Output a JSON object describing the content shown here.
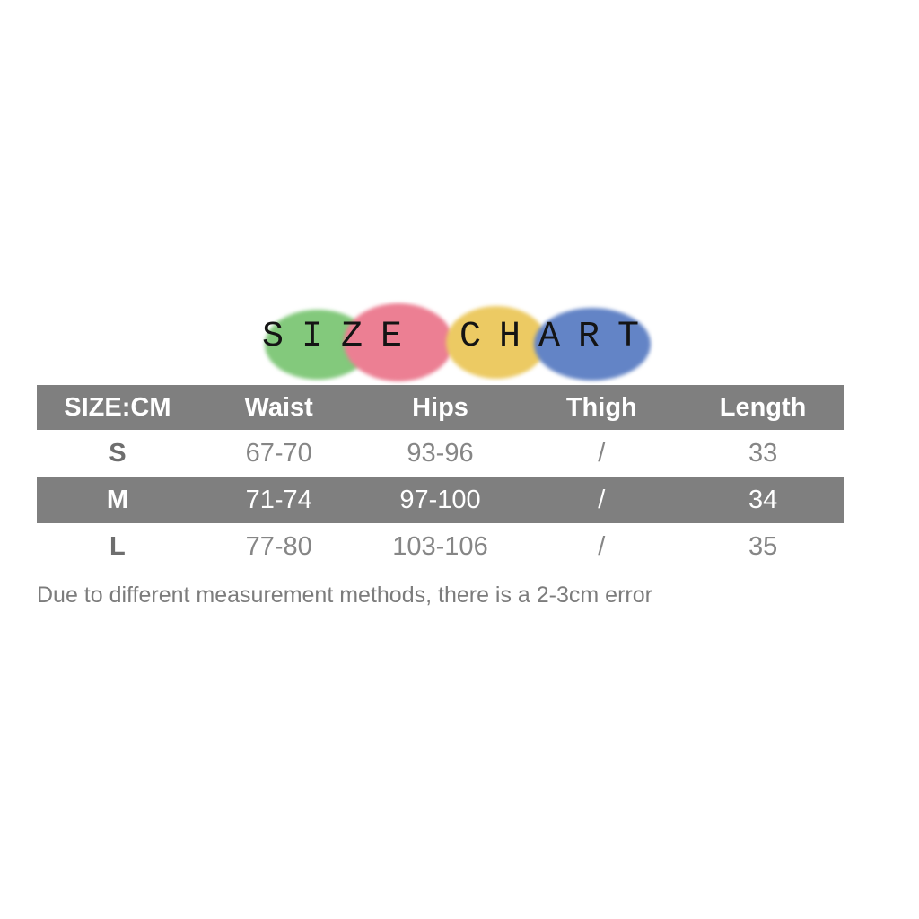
{
  "title": {
    "text": "SIZE CHART",
    "circles": [
      {
        "name": "green-blob",
        "color": "#83c97c"
      },
      {
        "name": "pink-blob",
        "color": "#ec7f93"
      },
      {
        "name": "yellow-blob",
        "color": "#ecca63"
      },
      {
        "name": "blue-blob",
        "color": "#6384c6"
      }
    ]
  },
  "colors": {
    "header_bg": "#7f7f7f",
    "highlight_row_bg": "#7f7f7f",
    "header_text": "#ffffff",
    "body_text": "#868686",
    "note_text": "#7c7c7c"
  },
  "chart_data": {
    "type": "table",
    "title": "SIZE CHART",
    "unit": "CM",
    "columns": [
      "SIZE:CM",
      "Waist",
      "Hips",
      "Thigh",
      "Length"
    ],
    "rows": [
      [
        "S",
        "67-70",
        "93-96",
        "/",
        "33"
      ],
      [
        "M",
        "71-74",
        "97-100",
        "/",
        "34"
      ],
      [
        "L",
        "77-80",
        "103-106",
        "/",
        "35"
      ]
    ],
    "highlighted_row_index": 1,
    "note": "Due to different measurement methods, there is a 2-3cm error"
  }
}
